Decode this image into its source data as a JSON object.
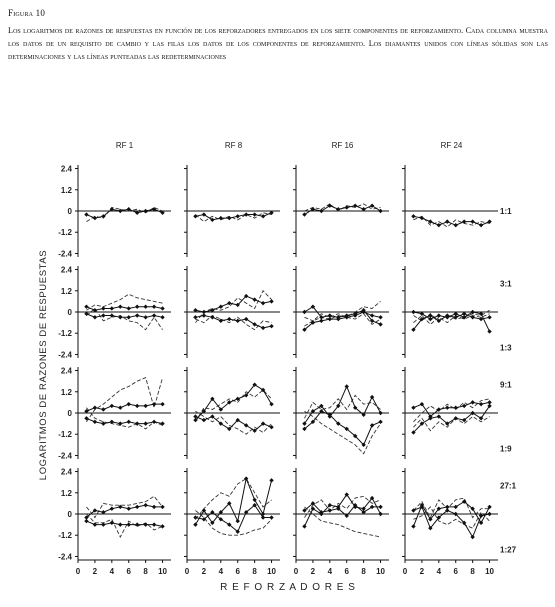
{
  "figure": {
    "label": "Figura 10",
    "caption": "Los logaritmos de razones de respuestas en función de los reforzadores entregados en los siete componentes de reforzamiento. Cada columna muestra los datos de un requisito de cambio y las filas los datos de los componentes de reforzamiento. Los diamantes unidos con líneas sólidas son las determinaciones y las líneas punteadas las redeterminaciones"
  },
  "chart_data": {
    "type": "line",
    "xlabel": "REFORZADORES",
    "ylabel": "LOGARITMOS DE RAZONES DE RESPUESTAS",
    "columns": [
      "RF 1",
      "RF 8",
      "RF 16",
      "RF 24"
    ],
    "x_ticks": [
      "0",
      "2",
      "4",
      "6",
      "8",
      "10"
    ],
    "x": [
      1,
      2,
      3,
      4,
      5,
      6,
      7,
      8,
      9,
      10
    ],
    "xlim": [
      0,
      11
    ],
    "ylim": [
      -2.6,
      2.6
    ],
    "y_ticks": [
      "2.4",
      "1.2",
      "0",
      "-1.2",
      "-2.4"
    ],
    "rows": [
      {
        "ratio_labels": [
          "1:1"
        ],
        "panels": [
          {
            "solid": [
              [
                -0.2,
                -0.4,
                -0.3,
                0.1,
                0.0,
                0.1,
                -0.1,
                0.0,
                0.1,
                -0.1
              ]
            ],
            "dashed": [
              [
                -0.6,
                -0.3,
                -0.4,
                0.2,
                0.1,
                0.0,
                0.1,
                -0.1,
                0.2,
                0.0
              ]
            ]
          },
          {
            "solid": [
              [
                -0.3,
                -0.2,
                -0.5,
                -0.4,
                -0.4,
                -0.3,
                -0.2,
                -0.2,
                -0.3,
                -0.1
              ]
            ],
            "dashed": [
              [
                -0.2,
                -0.6,
                -0.3,
                -0.5,
                -0.3,
                -0.5,
                -0.2,
                -0.4,
                -0.1,
                -0.2
              ]
            ]
          },
          {
            "solid": [
              [
                -0.2,
                0.1,
                0.0,
                0.3,
                0.1,
                0.2,
                0.3,
                0.1,
                0.3,
                0.0
              ]
            ],
            "dashed": [
              [
                0.0,
                0.2,
                0.1,
                0.4,
                0.0,
                0.3,
                0.2,
                0.4,
                0.1,
                0.2
              ]
            ]
          },
          {
            "solid": [
              [
                -0.3,
                -0.4,
                -0.6,
                -0.8,
                -0.6,
                -0.8,
                -0.6,
                -0.6,
                -0.8,
                -0.6
              ]
            ],
            "dashed": [
              [
                -0.5,
                -0.3,
                -0.8,
                -0.6,
                -0.9,
                -0.5,
                -0.7,
                -0.8,
                -0.6,
                -0.7
              ]
            ]
          }
        ]
      },
      {
        "ratio_labels": [
          "3:1",
          "1:3"
        ],
        "panels": [
          {
            "solid": [
              [
                0.3,
                0.1,
                0.2,
                0.2,
                0.3,
                0.2,
                0.3,
                0.3,
                0.3,
                0.2
              ],
              [
                -0.1,
                -0.3,
                -0.2,
                -0.2,
                -0.3,
                -0.3,
                -0.2,
                -0.3,
                -0.2,
                -0.3
              ]
            ],
            "dashed": [
              [
                0.1,
                0.4,
                0.3,
                0.5,
                0.7,
                1.0,
                0.8,
                0.7,
                0.6,
                0.5
              ],
              [
                -0.2,
                0.2,
                -0.5,
                -0.3,
                -0.2,
                -0.5,
                -0.6,
                -1.0,
                -0.3,
                -1.0
              ]
            ]
          },
          {
            "solid": [
              [
                0.1,
                0.0,
                0.1,
                0.3,
                0.5,
                0.4,
                0.9,
                0.7,
                0.5,
                0.6
              ],
              [
                -0.3,
                -0.2,
                -0.3,
                -0.5,
                -0.4,
                -0.5,
                -0.4,
                -0.7,
                -0.9,
                -0.8
              ]
            ],
            "dashed": [
              [
                -0.6,
                0.0,
                0.2,
                0.1,
                0.3,
                0.8,
                0.5,
                0.2,
                1.2,
                0.7
              ],
              [
                -0.4,
                -0.6,
                -0.2,
                -0.4,
                -0.6,
                -0.3,
                -0.7,
                -1.0,
                -0.5,
                -0.6
              ]
            ]
          },
          {
            "solid": [
              [
                -1.0,
                -0.6,
                -0.5,
                -0.4,
                -0.4,
                -0.3,
                -0.2,
                0.0,
                -0.2,
                -0.3
              ],
              [
                0.0,
                0.3,
                -0.3,
                -0.2,
                -0.3,
                -0.2,
                -0.1,
                0.1,
                -0.5,
                -0.7
              ]
            ],
            "dashed": [
              [
                -0.8,
                -0.5,
                -0.3,
                -0.4,
                -0.2,
                -0.3,
                0.0,
                0.3,
                0.2,
                0.6
              ],
              [
                -0.3,
                -0.5,
                -0.1,
                -0.3,
                -0.1,
                -0.3,
                -0.4,
                -0.1,
                -0.7,
                -0.4
              ]
            ]
          },
          {
            "solid": [
              [
                0.0,
                -0.1,
                -0.4,
                -0.2,
                -0.3,
                -0.1,
                -0.3,
                0.0,
                -0.1,
                -1.1
              ],
              [
                -1.0,
                -0.4,
                -0.2,
                -0.5,
                -0.2,
                -0.3,
                -0.1,
                -0.3,
                -0.4,
                -0.3
              ]
            ],
            "dashed": [
              [
                -0.2,
                -0.5,
                -0.1,
                -0.5,
                -0.2,
                -0.4,
                -0.3,
                -0.1,
                -0.2,
                0.1
              ],
              [
                -0.6,
                -0.2,
                -0.7,
                -0.3,
                -0.6,
                -0.2,
                -0.4,
                -0.2,
                -0.3,
                -0.1
              ]
            ]
          }
        ]
      },
      {
        "ratio_labels": [
          "9:1",
          "1:9"
        ],
        "panels": [
          {
            "solid": [
              [
                0.1,
                0.3,
                0.2,
                0.4,
                0.3,
                0.5,
                0.4,
                0.4,
                0.5,
                0.5
              ],
              [
                -0.3,
                -0.5,
                -0.6,
                -0.5,
                -0.6,
                -0.5,
                -0.6,
                -0.6,
                -0.5,
                -0.6
              ]
            ],
            "dashed": [
              [
                -0.5,
                0.2,
                0.5,
                0.9,
                1.3,
                1.5,
                1.8,
                2.0,
                0.3,
                2.0
              ],
              [
                0.3,
                -0.3,
                -0.5,
                -0.6,
                -0.7,
                -0.8,
                -0.6,
                -0.9,
                -0.5,
                -0.7
              ]
            ]
          },
          {
            "solid": [
              [
                -0.4,
                0.1,
                0.8,
                0.2,
                0.6,
                0.8,
                1.0,
                1.6,
                1.3,
                0.5
              ],
              [
                -0.2,
                -0.4,
                -0.2,
                -0.6,
                -0.9,
                -0.4,
                -0.7,
                -1.0,
                -0.6,
                -0.8
              ]
            ],
            "dashed": [
              [
                -0.5,
                0.3,
                0.2,
                0.5,
                0.8,
                0.6,
                1.2,
                0.9,
                1.3,
                0.8
              ],
              [
                0.1,
                -0.2,
                -0.5,
                -0.2,
                -0.7,
                -0.9,
                -1.2,
                -0.8,
                -1.1,
                -0.6
              ]
            ]
          },
          {
            "solid": [
              [
                -0.6,
                0.1,
                0.4,
                -0.2,
                0.4,
                1.5,
                0.3,
                -0.1,
                0.9,
                0.0
              ],
              [
                -0.9,
                -0.5,
                0.1,
                -0.1,
                -0.6,
                -0.9,
                -1.3,
                -1.8,
                -0.7,
                -0.5
              ]
            ],
            "dashed": [
              [
                -0.3,
                0.6,
                0.2,
                0.3,
                0.8,
                0.2,
                1.0,
                0.5,
                0.6,
                0.2
              ],
              [
                0.1,
                -0.2,
                -0.6,
                -0.9,
                -1.2,
                -1.5,
                -1.8,
                -2.3,
                -1.3,
                -0.6
              ]
            ]
          },
          {
            "solid": [
              [
                0.3,
                0.5,
                -0.2,
                0.2,
                0.3,
                0.3,
                0.4,
                0.6,
                0.5,
                0.6
              ],
              [
                -1.1,
                -0.6,
                -0.3,
                -0.2,
                -0.6,
                -0.3,
                -0.4,
                0.0,
                -0.3,
                0.4
              ]
            ],
            "dashed": [
              [
                -0.5,
                0.0,
                0.4,
                0.1,
                0.5,
                0.2,
                0.6,
                0.3,
                0.7,
                0.8
              ],
              [
                -0.8,
                -0.3,
                -1.0,
                -0.5,
                -0.8,
                -0.3,
                -0.6,
                -0.2,
                -0.5,
                -0.2
              ]
            ]
          }
        ]
      },
      {
        "ratio_labels": [
          "27:1",
          "1:27"
        ],
        "panels": [
          {
            "solid": [
              [
                -0.2,
                0.2,
                0.1,
                0.3,
                0.4,
                0.3,
                0.4,
                0.5,
                0.4,
                0.4
              ],
              [
                -0.4,
                -0.6,
                -0.6,
                -0.5,
                -0.6,
                -0.6,
                -0.6,
                -0.6,
                -0.6,
                -0.7
              ]
            ],
            "dashed": [
              [
                0.4,
                -0.2,
                0.6,
                0.5,
                0.5,
                0.5,
                0.6,
                0.7,
                1.0,
                0.4
              ],
              [
                0.0,
                -0.5,
                -0.5,
                -0.3,
                -1.3,
                -0.4,
                -0.7,
                -0.5,
                -0.9,
                -0.7
              ]
            ]
          },
          {
            "solid": [
              [
                -0.6,
                0.2,
                -0.5,
                0.1,
                0.6,
                -0.4,
                2.0,
                0.8,
                0.0,
                1.9
              ],
              [
                -0.2,
                -0.3,
                0.1,
                -0.3,
                -0.6,
                -1.0,
                0.1,
                0.5,
                -0.2,
                -0.2
              ]
            ],
            "dashed": [
              [
                -0.3,
                0.3,
                0.8,
                1.2,
                1.0,
                1.7,
                2.0,
                1.2,
                0.4,
                0.8
              ],
              [
                0.2,
                -0.2,
                -0.8,
                -1.1,
                -1.2,
                -1.2,
                -1.1,
                -0.9,
                -0.8,
                -0.3
              ]
            ]
          },
          {
            "solid": [
              [
                -0.7,
                0.3,
                0.0,
                0.5,
                0.4,
                1.1,
                0.4,
                0.3,
                0.9,
                0.0
              ],
              [
                0.2,
                0.6,
                0.1,
                0.2,
                0.3,
                -0.1,
                0.5,
                0.1,
                0.4,
                0.4
              ]
            ],
            "dashed": [
              [
                -0.2,
                0.5,
                0.8,
                0.2,
                0.6,
                0.3,
                0.9,
                1.0,
                0.6,
                0.8
              ],
              [
                0.4,
                0.0,
                -0.4,
                -0.5,
                -0.6,
                -0.8,
                -1.0,
                -1.1,
                -1.2,
                -1.3
              ]
            ]
          },
          {
            "solid": [
              [
                -0.7,
                0.5,
                -0.3,
                0.3,
                0.4,
                0.4,
                0.7,
                0.3,
                -0.5,
                0.4
              ],
              [
                0.2,
                0.4,
                -0.8,
                -0.2,
                0.2,
                0.0,
                -0.5,
                -1.3,
                -0.1,
                0.0
              ]
            ],
            "dashed": [
              [
                0.2,
                0.7,
                -0.2,
                0.8,
                0.3,
                0.8,
                0.9,
                -0.2,
                0.3,
                0.3
              ],
              [
                -0.3,
                -0.1,
                0.4,
                -0.4,
                -0.6,
                -0.3,
                -0.6,
                -0.8,
                0.1,
                -0.4
              ]
            ]
          }
        ]
      }
    ]
  }
}
